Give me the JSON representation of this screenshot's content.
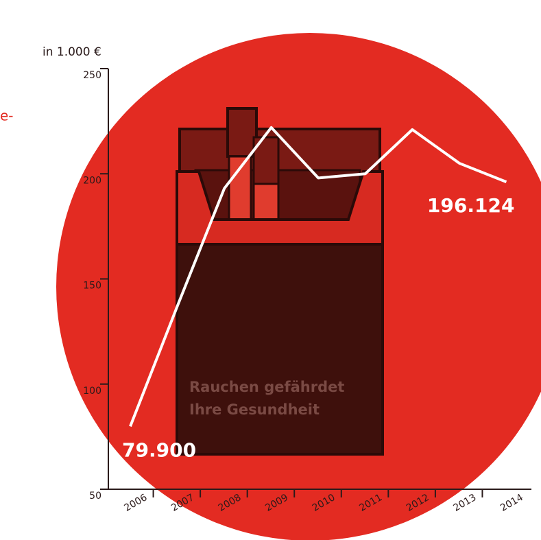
{
  "chart_data": {
    "type": "line",
    "unit_label": "in 1.000 €",
    "fragment": "e-",
    "pack_text": [
      "Rauchen gefährdet",
      "Ihre Gesundheit"
    ],
    "categories": [
      "2006",
      "2007",
      "2008",
      "2009",
      "2010",
      "2011",
      "2012",
      "2013",
      "2014"
    ],
    "values": [
      79.9,
      137,
      193,
      222,
      198,
      200,
      221,
      205,
      196.124
    ],
    "value_labels": [
      "79.900",
      null,
      null,
      null,
      null,
      null,
      null,
      null,
      "196.124"
    ],
    "color": "#ffffff",
    "ylim": [
      50,
      250
    ],
    "yticks": [
      50,
      100,
      150,
      200,
      250
    ]
  }
}
